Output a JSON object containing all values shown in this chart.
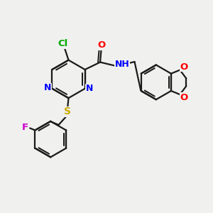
{
  "background_color": "#f0f0ef",
  "bond_color": "#1a1a1a",
  "colors": {
    "N": "#0000ff",
    "O": "#ff0000",
    "S": "#ccaa00",
    "F": "#cc00cc",
    "Cl": "#00aa00",
    "C": "#1a1a1a",
    "H": "#1a1a1a"
  },
  "figsize": [
    3.0,
    3.0
  ],
  "dpi": 100
}
